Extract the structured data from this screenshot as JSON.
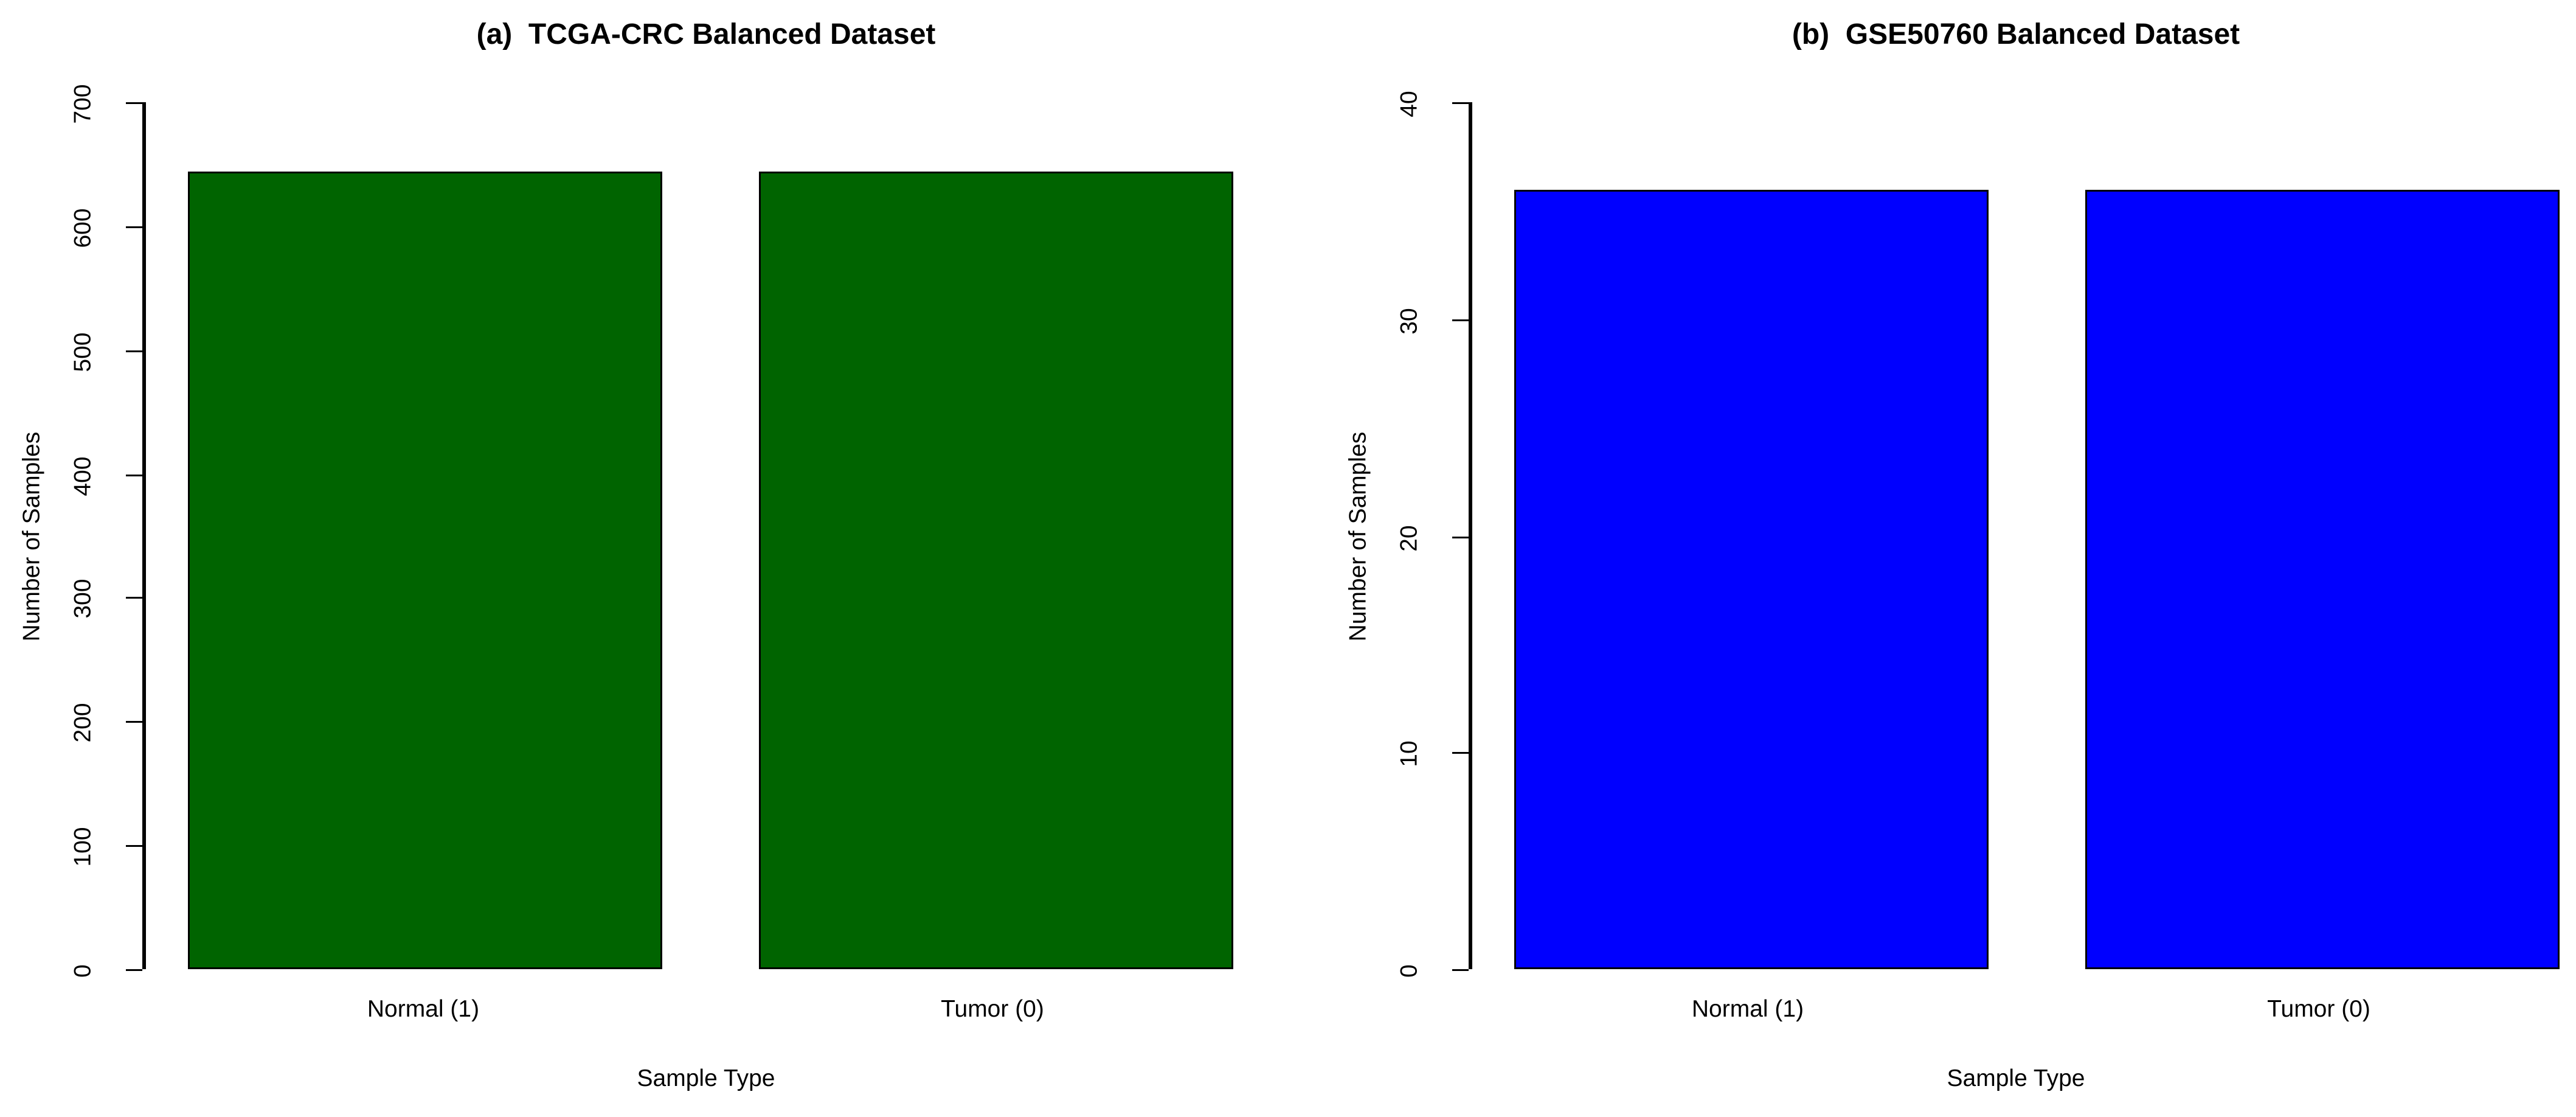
{
  "figure": {
    "background": "#ffffff",
    "text_color": "#000000"
  },
  "chart_data": [
    {
      "type": "bar",
      "title": "(a)  TCGA-CRC Balanced Dataset",
      "categories": [
        "Normal (1)",
        "Tumor (0)"
      ],
      "values": [
        644,
        644
      ],
      "xlabel": "Sample Type",
      "ylabel": "Number of Samples",
      "ylim": [
        0,
        700
      ],
      "yticks": [
        0,
        100,
        200,
        300,
        400,
        500,
        600,
        700
      ],
      "bar_color": "#006400",
      "bar_border": "#000000",
      "grid": "off",
      "legend": "none"
    },
    {
      "type": "bar",
      "title": "(b)  GSE50760 Balanced Dataset",
      "categories": [
        "Normal (1)",
        "Tumor (0)"
      ],
      "values": [
        36,
        36
      ],
      "xlabel": "Sample Type",
      "ylabel": "Number of Samples",
      "ylim": [
        0,
        40
      ],
      "yticks": [
        0,
        10,
        20,
        30,
        40
      ],
      "bar_color": "#0000FF",
      "bar_border": "#000000",
      "grid": "off",
      "legend": "none"
    }
  ]
}
